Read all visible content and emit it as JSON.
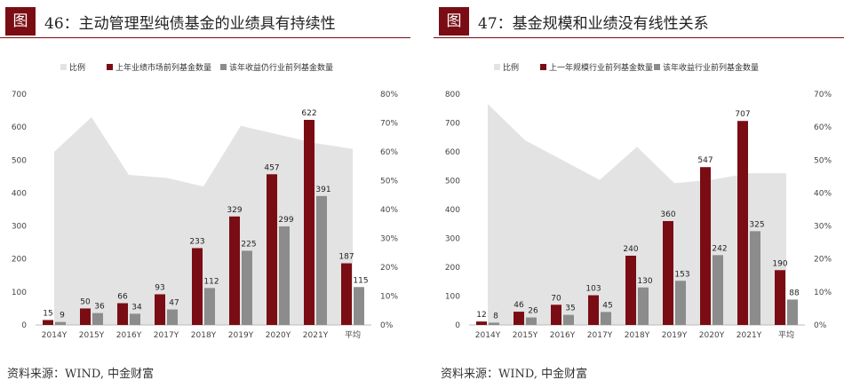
{
  "colors": {
    "accent": "#7a0d14",
    "bar_dark": "#7a0d14",
    "bar_gray": "#8c8c8c",
    "area": "#e3e3e3"
  },
  "charts": [
    {
      "tag": "图",
      "title": "46：主动管理型纯债基金的业绩具有持续性",
      "source": "资料来源：WIND, 中金财富"
    },
    {
      "tag": "图",
      "title": "47：基金规模和业绩没有线性关系",
      "source": "资料来源：WIND, 中金财富"
    }
  ],
  "chart_data": [
    {
      "type": "bar",
      "title": "46：主动管理型纯债基金的业绩具有持续性",
      "categories": [
        "2014Y",
        "2015Y",
        "2016Y",
        "2017Y",
        "2018Y",
        "2019Y",
        "2020Y",
        "2021Y",
        "平均"
      ],
      "series": [
        {
          "name": "比例",
          "kind": "area",
          "axis": "right",
          "values": [
            0.6,
            0.72,
            0.52,
            0.51,
            0.48,
            0.69,
            0.66,
            0.63,
            0.61
          ]
        },
        {
          "name": "上年业绩市场前列基金数量",
          "kind": "bar",
          "axis": "left",
          "values": [
            15,
            50,
            66,
            93,
            233,
            329,
            457,
            622,
            187
          ]
        },
        {
          "name": "该年收益仍行业前列基金数量",
          "kind": "bar",
          "axis": "left",
          "values": [
            9,
            36,
            34,
            47,
            112,
            225,
            299,
            391,
            115
          ]
        }
      ],
      "ylim": [
        0,
        700
      ],
      "yticks": [
        "0",
        "100",
        "200",
        "300",
        "400",
        "500",
        "600",
        "700"
      ],
      "y2lim": [
        0,
        0.8
      ],
      "y2ticks": [
        "0%",
        "10%",
        "20%",
        "30%",
        "40%",
        "50%",
        "60%",
        "70%",
        "80%"
      ],
      "legend": [
        "比例",
        "上年业绩市场前列基金数量",
        "该年收益仍行业前列基金数量"
      ]
    },
    {
      "type": "bar",
      "title": "47：基金规模和业绩没有线性关系",
      "categories": [
        "2014Y",
        "2015Y",
        "2016Y",
        "2017Y",
        "2018Y",
        "2019Y",
        "2020Y",
        "2021Y",
        "平均"
      ],
      "series": [
        {
          "name": "比例",
          "kind": "area",
          "axis": "right",
          "values": [
            0.67,
            0.56,
            0.5,
            0.44,
            0.54,
            0.43,
            0.44,
            0.46,
            0.46
          ]
        },
        {
          "name": "上一年规模行业前列基金数量",
          "kind": "bar",
          "axis": "left",
          "values": [
            12,
            46,
            70,
            103,
            240,
            360,
            547,
            707,
            190
          ]
        },
        {
          "name": "该年收益行业前列基金数量",
          "kind": "bar",
          "axis": "left",
          "values": [
            8,
            26,
            35,
            45,
            130,
            153,
            242,
            325,
            88
          ]
        }
      ],
      "ylim": [
        0,
        800
      ],
      "yticks": [
        "0",
        "100",
        "200",
        "300",
        "400",
        "500",
        "600",
        "700",
        "800"
      ],
      "y2lim": [
        0,
        0.7
      ],
      "y2ticks": [
        "0%",
        "10%",
        "20%",
        "30%",
        "40%",
        "50%",
        "60%",
        "70%"
      ],
      "legend": [
        "比例",
        "上一年规模行业前列基金数量",
        "该年收益行业前列基金数量"
      ]
    }
  ]
}
